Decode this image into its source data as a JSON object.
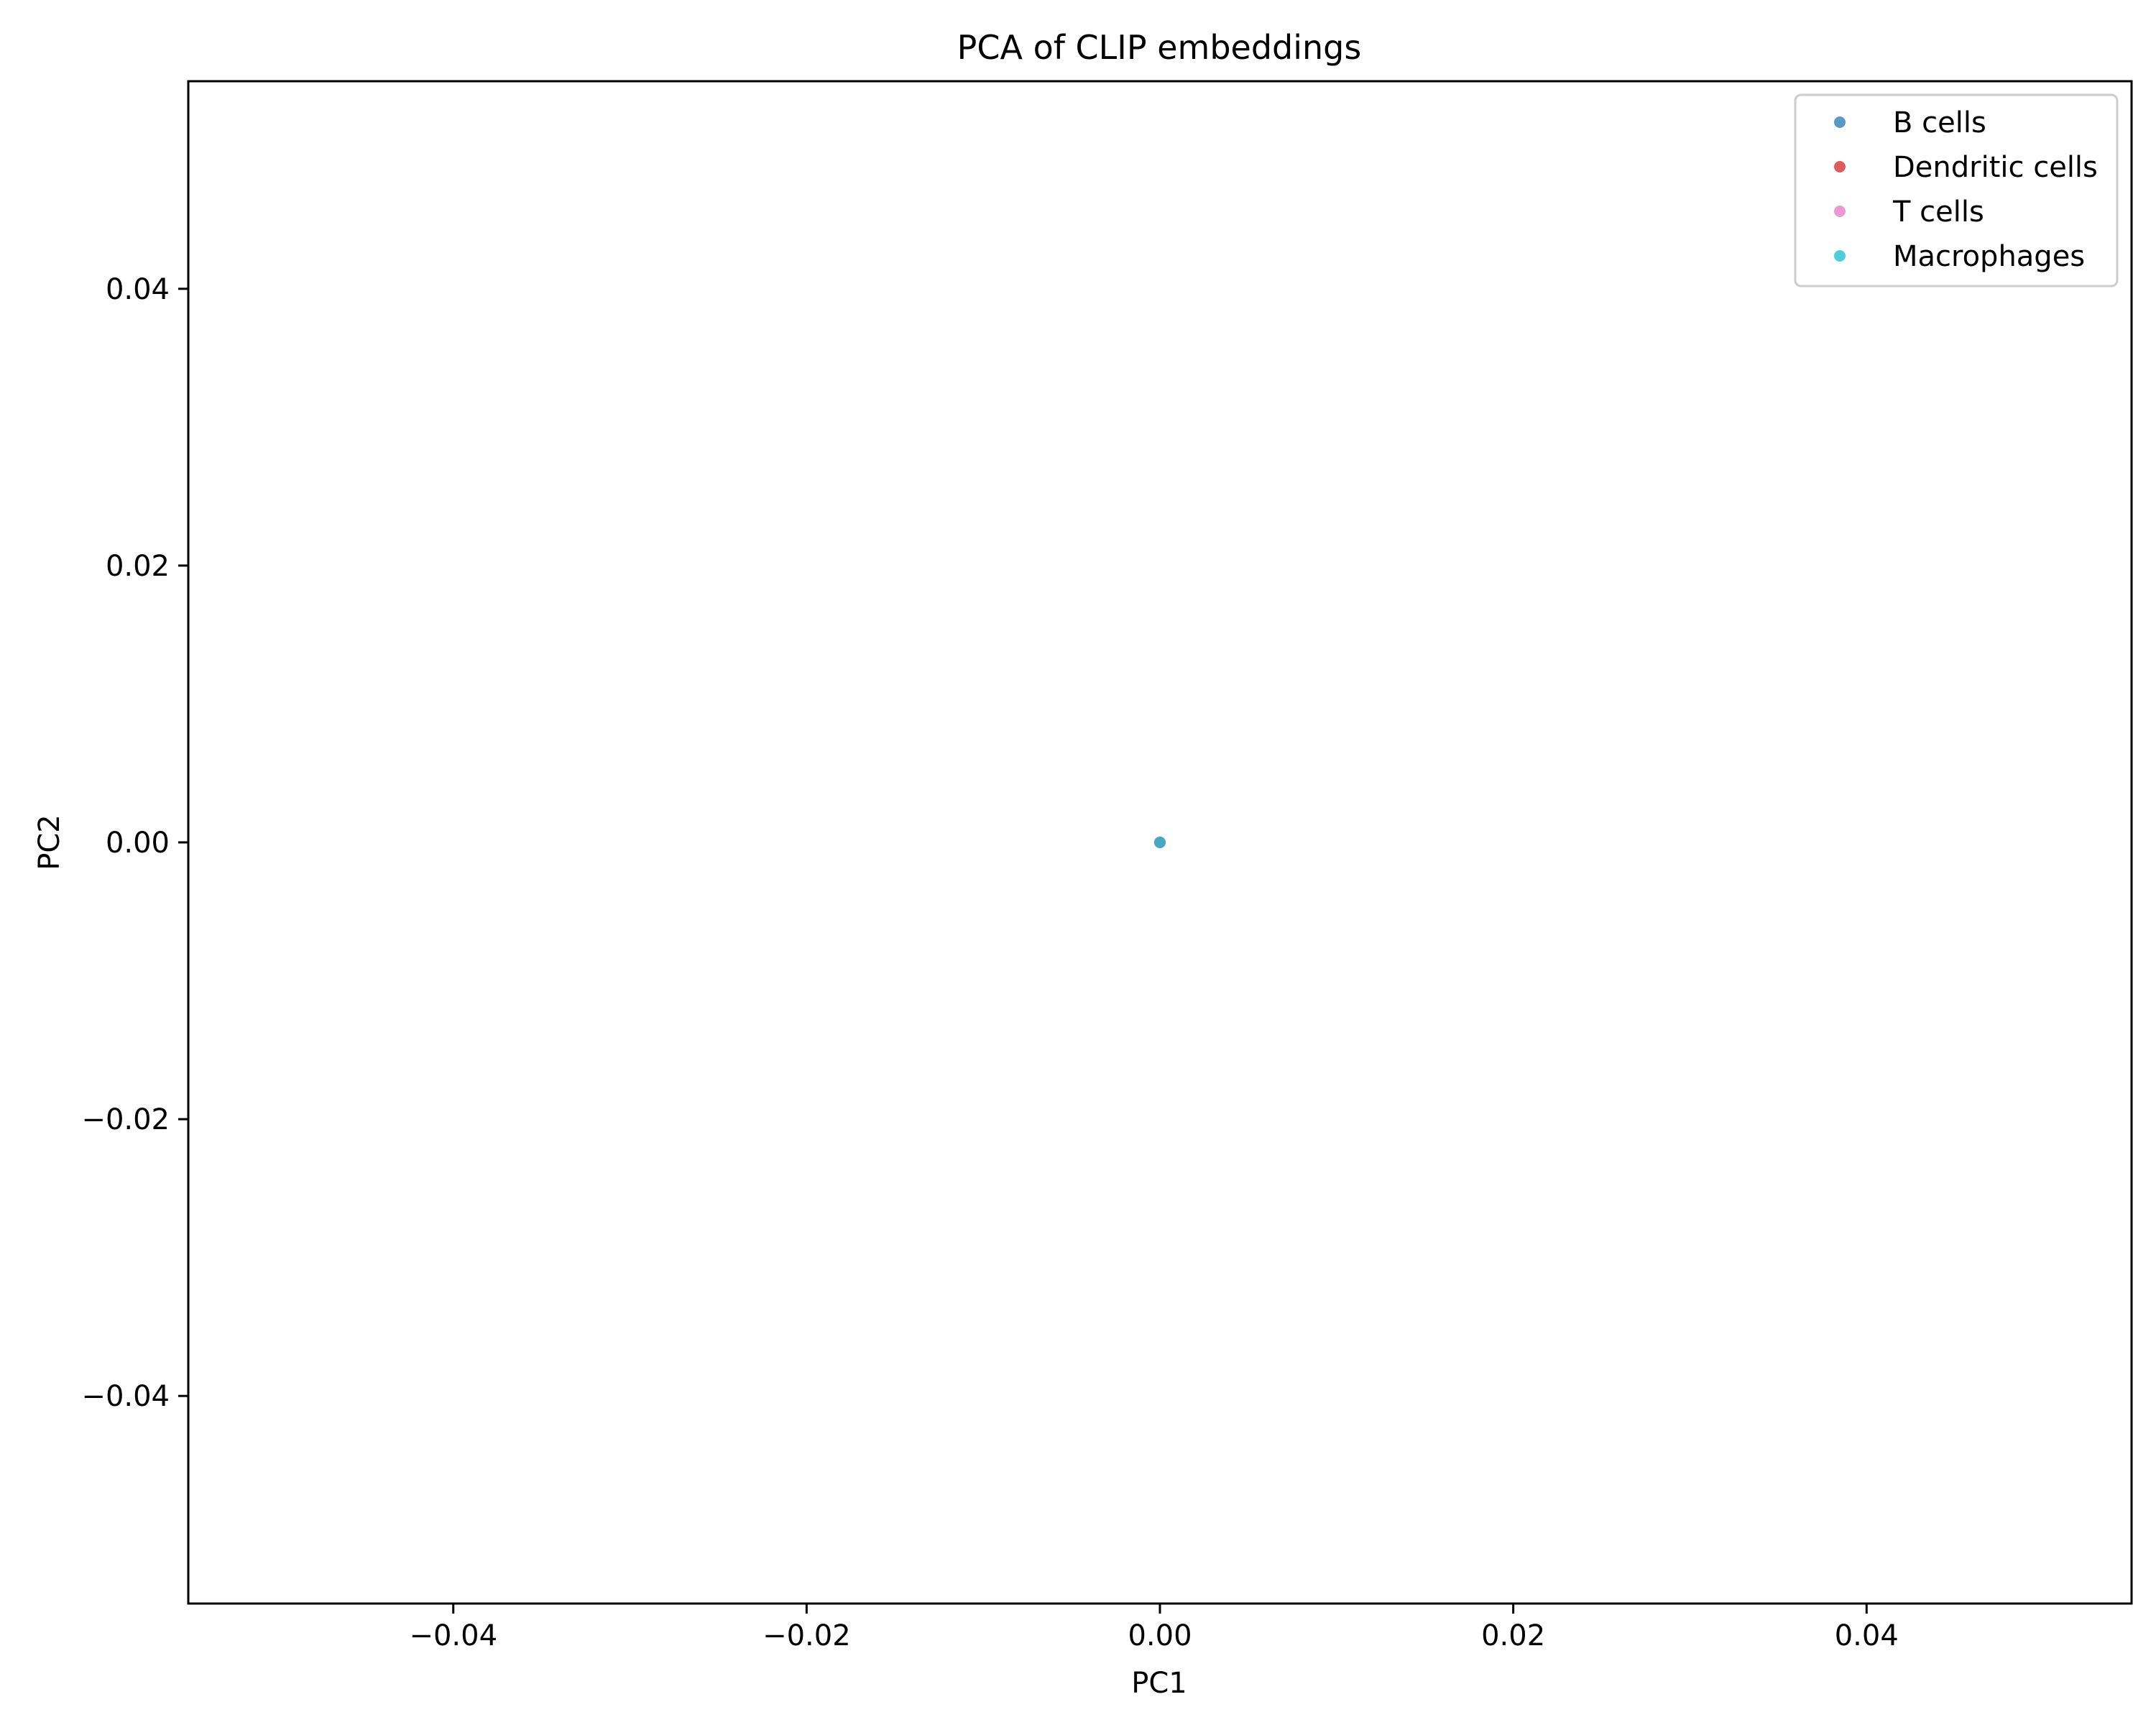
{
  "chart_data": {
    "type": "scatter",
    "title": "PCA of CLIP embeddings",
    "xlabel": "PC1",
    "ylabel": "PC2",
    "xlim": [
      -0.055,
      0.055
    ],
    "ylim": [
      -0.055,
      0.055
    ],
    "xticks": [
      -0.04,
      -0.02,
      0.0,
      0.02,
      0.04
    ],
    "yticks": [
      -0.04,
      -0.02,
      0.0,
      0.02,
      0.04
    ],
    "xtick_labels": [
      "−0.04",
      "−0.02",
      "0.00",
      "0.02",
      "0.04"
    ],
    "ytick_labels": [
      "−0.04",
      "−0.02",
      "0.00",
      "0.02",
      "0.04"
    ],
    "grid": false,
    "legend_position": "top-right",
    "series": [
      {
        "name": "B cells",
        "color": "#1f77b4",
        "points": [
          [
            0.0,
            0.0
          ]
        ]
      },
      {
        "name": "Dendritic cells",
        "color": "#d62728",
        "points": [
          [
            0.0,
            0.0
          ]
        ]
      },
      {
        "name": "T cells",
        "color": "#e377c2",
        "points": [
          [
            0.0,
            0.0
          ]
        ]
      },
      {
        "name": "Macrophages",
        "color": "#17becf",
        "points": [
          [
            0.0,
            0.0
          ]
        ]
      }
    ]
  }
}
